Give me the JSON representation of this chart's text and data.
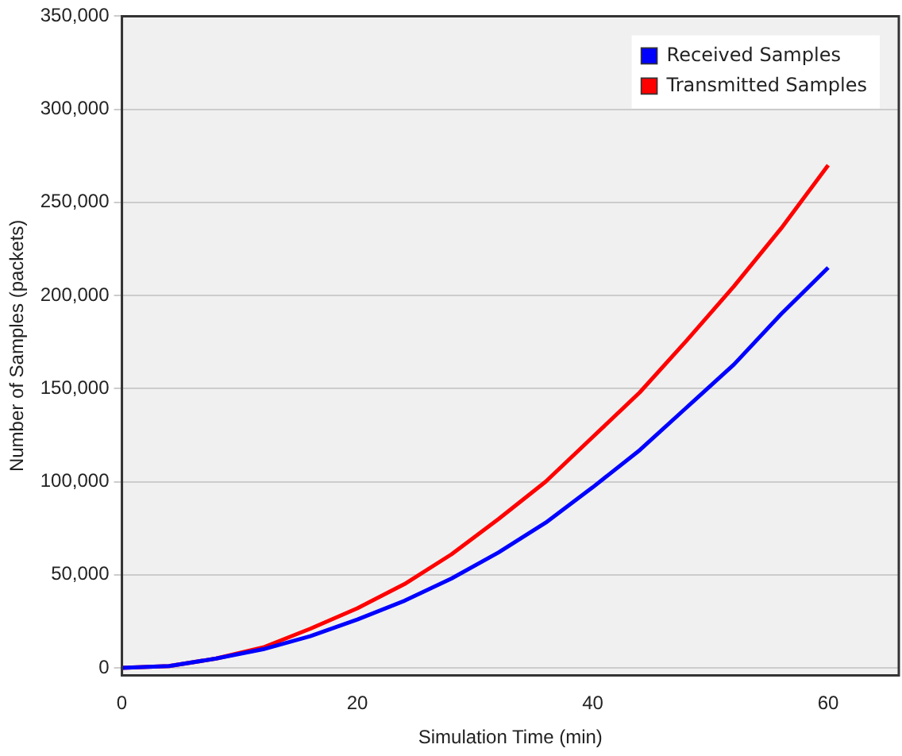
{
  "chart_data": {
    "type": "line",
    "xlabel": "Simulation Time (min)",
    "ylabel": "Number of Samples (packets)",
    "x": [
      0,
      4,
      8,
      12,
      16,
      20,
      24,
      28,
      32,
      36,
      40,
      44,
      48,
      52,
      56,
      60
    ],
    "series": [
      {
        "name": "Received Samples",
        "color": "#0000ff",
        "values": [
          0,
          1000,
          5000,
          10000,
          17000,
          26000,
          36000,
          48000,
          62000,
          78000,
          97000,
          117000,
          140000,
          163000,
          190000,
          215000
        ]
      },
      {
        "name": "Transmitted Samples",
        "color": "#ff0000",
        "values": [
          0,
          1000,
          5000,
          11000,
          21000,
          32000,
          45000,
          61000,
          80000,
          100000,
          124000,
          148000,
          176000,
          205000,
          236000,
          270000
        ]
      }
    ],
    "xlim": [
      0,
      66
    ],
    "xticks": [
      0,
      20,
      40,
      60
    ],
    "ylim": [
      -4000,
      350000
    ],
    "yticks": [
      0,
      {
        "value": 50000,
        "label": "50,000"
      },
      {
        "value": 100000,
        "label": "100,000"
      },
      {
        "value": 150000,
        "label": "150,000"
      },
      {
        "value": 200000,
        "label": "200,000"
      },
      {
        "value": 250000,
        "label": "250,000"
      },
      {
        "value": 300000,
        "label": "300,000"
      },
      {
        "value": 350000,
        "label": "350,000"
      }
    ],
    "grid": "y",
    "legend": "top right",
    "marker": "none",
    "line_style": "solid"
  }
}
